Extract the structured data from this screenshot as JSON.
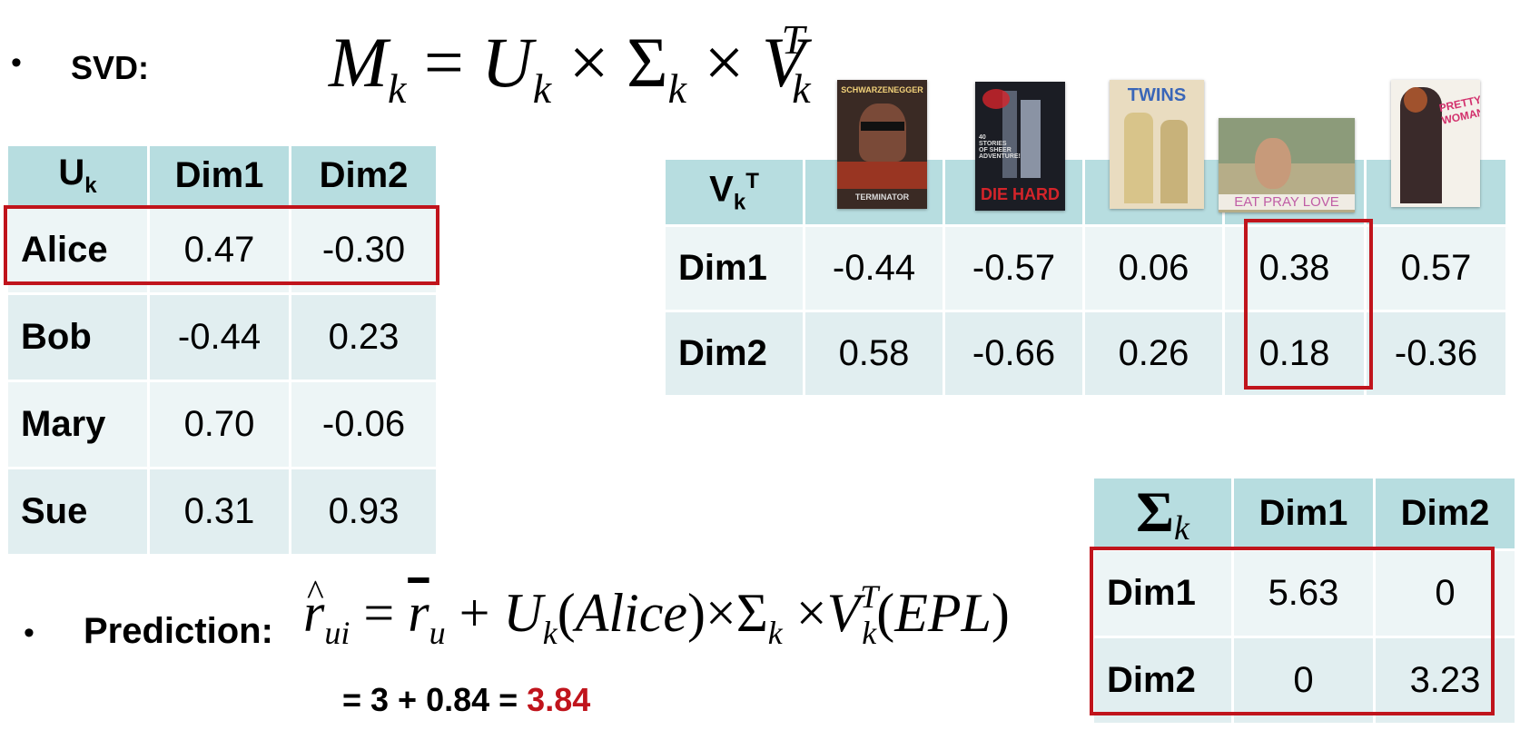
{
  "svd": {
    "bullet": "•",
    "label": "SVD:",
    "formula": {
      "M": "M",
      "U": "U",
      "Sigma": "Σ",
      "V": "V",
      "k": "k",
      "T": "T",
      "eq": "=",
      "times": "×"
    }
  },
  "u_table": {
    "corner": "U",
    "corner_sub": "k",
    "columns": [
      "Dim1",
      "Dim2"
    ],
    "rows": [
      {
        "name": "Alice",
        "values": [
          "0.47",
          "-0.30"
        ]
      },
      {
        "name": "Bob",
        "values": [
          "-0.44",
          "0.23"
        ]
      },
      {
        "name": "Mary",
        "values": [
          "0.70",
          "-0.06"
        ]
      },
      {
        "name": "Sue",
        "values": [
          "0.31",
          "0.93"
        ]
      }
    ]
  },
  "posters": [
    {
      "title_top": "SCHWARZENEGGER",
      "title_bottom": "TERMINATOR",
      "bg": "#3a2a24",
      "accent": "#c23a22"
    },
    {
      "title_top": "40 STORIES OF SHEER ADVENTURE!",
      "title_bottom": "DIE HARD",
      "bg": "#1b1d24",
      "accent": "#d4242a"
    },
    {
      "title_top": "TWINS",
      "title_bottom": "",
      "bg": "#e9dcc0",
      "accent": "#3a66b8"
    },
    {
      "title_top": "",
      "title_bottom": "EAT PRAY LOVE",
      "bg": "#b6ad88",
      "accent": "#c05ea6"
    },
    {
      "title_top": "PRETTY WOMAN",
      "title_bottom": "",
      "bg": "#f4f1ea",
      "accent": "#d2306c"
    }
  ],
  "v_table": {
    "corner": "V",
    "corner_sub": "k",
    "corner_sup": "T",
    "rows": [
      {
        "name": "Dim1",
        "values": [
          "-0.44",
          "-0.57",
          "0.06",
          "0.38",
          "0.57"
        ]
      },
      {
        "name": "Dim2",
        "values": [
          "0.58",
          "-0.66",
          "0.26",
          "0.18",
          "-0.36"
        ]
      }
    ]
  },
  "sigma_table": {
    "corner": "Σ",
    "corner_sub": "k",
    "columns": [
      "Dim1",
      "Dim2"
    ],
    "rows": [
      {
        "name": "Dim1",
        "values": [
          "5.63",
          "0"
        ]
      },
      {
        "name": "Dim2",
        "values": [
          "0",
          "3.23"
        ]
      }
    ]
  },
  "prediction": {
    "bullet": "•",
    "label": "Prediction:",
    "formula": {
      "r": "r",
      "ui": "ui",
      "u": "u",
      "alice": "Alice",
      "epl": "EPL",
      "eq": "=",
      "plus": "+",
      "times": "×",
      "lp": "(",
      "rp": ")"
    },
    "calc_prefix": "= 3 + 0.84 = ",
    "result": "3.84"
  },
  "colors": {
    "header": "#b7dde0",
    "cell": "#edf5f6",
    "cell_alt": "#e1eef0",
    "highlight": "#c0141c"
  }
}
